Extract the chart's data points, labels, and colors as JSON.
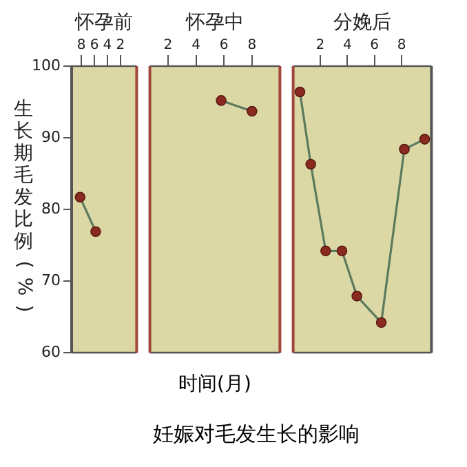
{
  "chart_data": [
    {
      "type": "line",
      "title": "怀孕前",
      "ylabel": "生长期毛发比例(%)",
      "x": [
        8.2,
        5.8
      ],
      "series": [
        {
          "color": "#5b7a5e",
          "values": [
            81.7,
            76.9
          ]
        }
      ],
      "xlim": [
        9.5,
        -0.5
      ],
      "xticks": [
        8,
        6,
        4,
        2
      ],
      "ylim": [
        60,
        100
      ],
      "yticks": [
        60,
        70,
        80,
        90,
        100
      ],
      "grid": false,
      "legend": false,
      "marker": "circle",
      "line_style": "solid"
    },
    {
      "type": "line",
      "title": "怀孕中",
      "xlabel": "时间(月)",
      "annotations": [
        "妊娠对毛发生长的影响"
      ],
      "x": [
        5.8,
        8.0
      ],
      "series": [
        {
          "color": "#5b7a5e",
          "values": [
            95.2,
            93.7
          ]
        }
      ],
      "xlim": [
        0.7,
        10
      ],
      "xticks": [
        2,
        4,
        6,
        8
      ],
      "ylim": [
        60,
        100
      ],
      "tick_labels": "x",
      "grid": false,
      "legend": false,
      "marker": "circle",
      "line_style": "solid"
    },
    {
      "type": "line",
      "title": "分娩后",
      "x": [
        0.5,
        1.3,
        2.4,
        3.6,
        4.7,
        6.5,
        8.2,
        9.7
      ],
      "series": [
        {
          "color": "#5b7a5e",
          "values": [
            96.4,
            86.3,
            74.2,
            74.2,
            67.9,
            64.2,
            88.4,
            89.8
          ]
        }
      ],
      "xlim": [
        0,
        10.2
      ],
      "xticks": [
        2,
        4,
        6,
        8
      ],
      "ylim": [
        60,
        100
      ],
      "tick_labels": "x",
      "grid": false,
      "legend": false,
      "marker": "circle",
      "line_style": "solid"
    }
  ]
}
